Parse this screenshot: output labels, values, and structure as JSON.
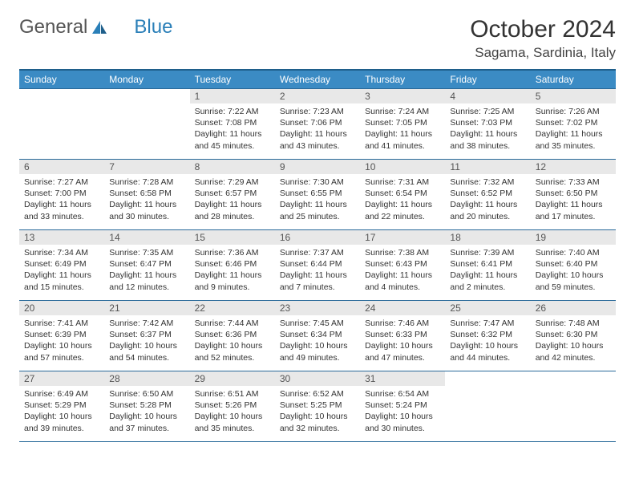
{
  "logo": {
    "text1": "General",
    "text2": "Blue"
  },
  "title": "October 2024",
  "location": "Sagama, Sardinia, Italy",
  "colors": {
    "header_bg": "#3b8bc4",
    "header_border": "#1f5f8b",
    "cell_border": "#2a6a9a",
    "daynum_bg": "#e8e8e8",
    "logo_blue": "#2a7fb8"
  },
  "weekdays": [
    "Sunday",
    "Monday",
    "Tuesday",
    "Wednesday",
    "Thursday",
    "Friday",
    "Saturday"
  ],
  "weeks": [
    [
      null,
      null,
      {
        "n": "1",
        "sr": "7:22 AM",
        "ss": "7:08 PM",
        "dl": "11 hours and 45 minutes."
      },
      {
        "n": "2",
        "sr": "7:23 AM",
        "ss": "7:06 PM",
        "dl": "11 hours and 43 minutes."
      },
      {
        "n": "3",
        "sr": "7:24 AM",
        "ss": "7:05 PM",
        "dl": "11 hours and 41 minutes."
      },
      {
        "n": "4",
        "sr": "7:25 AM",
        "ss": "7:03 PM",
        "dl": "11 hours and 38 minutes."
      },
      {
        "n": "5",
        "sr": "7:26 AM",
        "ss": "7:02 PM",
        "dl": "11 hours and 35 minutes."
      }
    ],
    [
      {
        "n": "6",
        "sr": "7:27 AM",
        "ss": "7:00 PM",
        "dl": "11 hours and 33 minutes."
      },
      {
        "n": "7",
        "sr": "7:28 AM",
        "ss": "6:58 PM",
        "dl": "11 hours and 30 minutes."
      },
      {
        "n": "8",
        "sr": "7:29 AM",
        "ss": "6:57 PM",
        "dl": "11 hours and 28 minutes."
      },
      {
        "n": "9",
        "sr": "7:30 AM",
        "ss": "6:55 PM",
        "dl": "11 hours and 25 minutes."
      },
      {
        "n": "10",
        "sr": "7:31 AM",
        "ss": "6:54 PM",
        "dl": "11 hours and 22 minutes."
      },
      {
        "n": "11",
        "sr": "7:32 AM",
        "ss": "6:52 PM",
        "dl": "11 hours and 20 minutes."
      },
      {
        "n": "12",
        "sr": "7:33 AM",
        "ss": "6:50 PM",
        "dl": "11 hours and 17 minutes."
      }
    ],
    [
      {
        "n": "13",
        "sr": "7:34 AM",
        "ss": "6:49 PM",
        "dl": "11 hours and 15 minutes."
      },
      {
        "n": "14",
        "sr": "7:35 AM",
        "ss": "6:47 PM",
        "dl": "11 hours and 12 minutes."
      },
      {
        "n": "15",
        "sr": "7:36 AM",
        "ss": "6:46 PM",
        "dl": "11 hours and 9 minutes."
      },
      {
        "n": "16",
        "sr": "7:37 AM",
        "ss": "6:44 PM",
        "dl": "11 hours and 7 minutes."
      },
      {
        "n": "17",
        "sr": "7:38 AM",
        "ss": "6:43 PM",
        "dl": "11 hours and 4 minutes."
      },
      {
        "n": "18",
        "sr": "7:39 AM",
        "ss": "6:41 PM",
        "dl": "11 hours and 2 minutes."
      },
      {
        "n": "19",
        "sr": "7:40 AM",
        "ss": "6:40 PM",
        "dl": "10 hours and 59 minutes."
      }
    ],
    [
      {
        "n": "20",
        "sr": "7:41 AM",
        "ss": "6:39 PM",
        "dl": "10 hours and 57 minutes."
      },
      {
        "n": "21",
        "sr": "7:42 AM",
        "ss": "6:37 PM",
        "dl": "10 hours and 54 minutes."
      },
      {
        "n": "22",
        "sr": "7:44 AM",
        "ss": "6:36 PM",
        "dl": "10 hours and 52 minutes."
      },
      {
        "n": "23",
        "sr": "7:45 AM",
        "ss": "6:34 PM",
        "dl": "10 hours and 49 minutes."
      },
      {
        "n": "24",
        "sr": "7:46 AM",
        "ss": "6:33 PM",
        "dl": "10 hours and 47 minutes."
      },
      {
        "n": "25",
        "sr": "7:47 AM",
        "ss": "6:32 PM",
        "dl": "10 hours and 44 minutes."
      },
      {
        "n": "26",
        "sr": "7:48 AM",
        "ss": "6:30 PM",
        "dl": "10 hours and 42 minutes."
      }
    ],
    [
      {
        "n": "27",
        "sr": "6:49 AM",
        "ss": "5:29 PM",
        "dl": "10 hours and 39 minutes."
      },
      {
        "n": "28",
        "sr": "6:50 AM",
        "ss": "5:28 PM",
        "dl": "10 hours and 37 minutes."
      },
      {
        "n": "29",
        "sr": "6:51 AM",
        "ss": "5:26 PM",
        "dl": "10 hours and 35 minutes."
      },
      {
        "n": "30",
        "sr": "6:52 AM",
        "ss": "5:25 PM",
        "dl": "10 hours and 32 minutes."
      },
      {
        "n": "31",
        "sr": "6:54 AM",
        "ss": "5:24 PM",
        "dl": "10 hours and 30 minutes."
      },
      null,
      null
    ]
  ],
  "labels": {
    "sunrise": "Sunrise: ",
    "sunset": "Sunset: ",
    "daylight": "Daylight: "
  }
}
